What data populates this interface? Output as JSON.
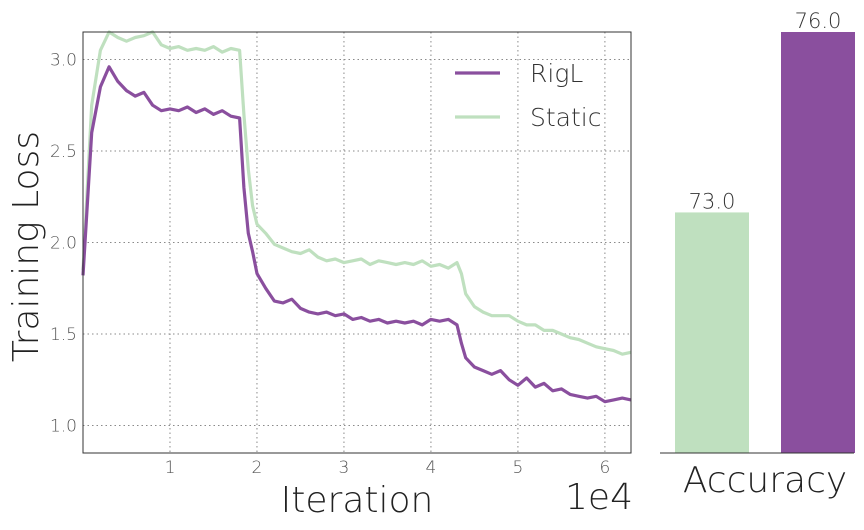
{
  "chart_data": [
    {
      "type": "line",
      "title": "",
      "xlabel": "Iteration",
      "x_offset_label": "1e4",
      "ylabel": "Training Loss",
      "xlim": [
        0,
        6.3
      ],
      "ylim": [
        0.85,
        3.15
      ],
      "xticks": [
        "1",
        "2",
        "3",
        "4",
        "5",
        "6"
      ],
      "yticks": [
        "1.0",
        "1.5",
        "2.0",
        "2.5",
        "3.0"
      ],
      "grid": true,
      "legend_position": "top-right",
      "series": [
        {
          "name": "RigL",
          "color": "#8a4f9e",
          "x": [
            0,
            0.1,
            0.2,
            0.3,
            0.4,
            0.5,
            0.6,
            0.7,
            0.8,
            0.9,
            1.0,
            1.1,
            1.2,
            1.3,
            1.4,
            1.5,
            1.6,
            1.7,
            1.8,
            1.85,
            1.9,
            1.95,
            2.0,
            2.1,
            2.2,
            2.3,
            2.4,
            2.5,
            2.6,
            2.7,
            2.8,
            2.9,
            3.0,
            3.1,
            3.2,
            3.3,
            3.4,
            3.5,
            3.6,
            3.7,
            3.8,
            3.9,
            4.0,
            4.1,
            4.2,
            4.3,
            4.35,
            4.4,
            4.5,
            4.6,
            4.7,
            4.8,
            4.9,
            5.0,
            5.1,
            5.2,
            5.3,
            5.4,
            5.5,
            5.6,
            5.7,
            5.8,
            5.9,
            6.0,
            6.1,
            6.2,
            6.3
          ],
          "y": [
            1.82,
            2.6,
            2.85,
            2.96,
            2.88,
            2.83,
            2.8,
            2.82,
            2.75,
            2.72,
            2.73,
            2.72,
            2.74,
            2.71,
            2.73,
            2.7,
            2.72,
            2.69,
            2.68,
            2.3,
            2.05,
            1.95,
            1.83,
            1.75,
            1.68,
            1.67,
            1.69,
            1.64,
            1.62,
            1.61,
            1.62,
            1.6,
            1.61,
            1.58,
            1.59,
            1.57,
            1.58,
            1.56,
            1.57,
            1.56,
            1.57,
            1.55,
            1.58,
            1.57,
            1.58,
            1.55,
            1.45,
            1.37,
            1.32,
            1.3,
            1.28,
            1.3,
            1.25,
            1.22,
            1.26,
            1.21,
            1.23,
            1.19,
            1.2,
            1.17,
            1.16,
            1.15,
            1.16,
            1.13,
            1.14,
            1.15,
            1.14
          ]
        },
        {
          "name": "Static",
          "color": "#bfe0bf",
          "x": [
            0,
            0.1,
            0.2,
            0.3,
            0.4,
            0.5,
            0.6,
            0.7,
            0.8,
            0.9,
            1.0,
            1.1,
            1.2,
            1.3,
            1.4,
            1.5,
            1.6,
            1.7,
            1.8,
            1.85,
            1.9,
            1.95,
            2.0,
            2.1,
            2.2,
            2.3,
            2.4,
            2.5,
            2.6,
            2.7,
            2.8,
            2.9,
            3.0,
            3.1,
            3.2,
            3.3,
            3.4,
            3.5,
            3.6,
            3.7,
            3.8,
            3.9,
            4.0,
            4.1,
            4.2,
            4.3,
            4.35,
            4.4,
            4.5,
            4.6,
            4.7,
            4.8,
            4.9,
            5.0,
            5.1,
            5.2,
            5.3,
            5.4,
            5.5,
            5.6,
            5.7,
            5.8,
            5.9,
            6.0,
            6.1,
            6.2,
            6.3
          ],
          "y": [
            1.85,
            2.75,
            3.05,
            3.15,
            3.12,
            3.1,
            3.12,
            3.13,
            3.15,
            3.08,
            3.06,
            3.07,
            3.05,
            3.06,
            3.05,
            3.07,
            3.04,
            3.06,
            3.05,
            2.7,
            2.4,
            2.2,
            2.1,
            2.05,
            1.99,
            1.97,
            1.95,
            1.94,
            1.96,
            1.92,
            1.9,
            1.91,
            1.89,
            1.9,
            1.91,
            1.88,
            1.9,
            1.89,
            1.88,
            1.89,
            1.88,
            1.9,
            1.87,
            1.88,
            1.86,
            1.89,
            1.83,
            1.72,
            1.65,
            1.62,
            1.6,
            1.6,
            1.6,
            1.57,
            1.55,
            1.55,
            1.52,
            1.52,
            1.5,
            1.48,
            1.47,
            1.45,
            1.43,
            1.42,
            1.41,
            1.39,
            1.4
          ]
        }
      ]
    },
    {
      "type": "bar",
      "title": "",
      "xlabel": "Accuracy",
      "categories": [
        "Static",
        "RigL"
      ],
      "values": [
        73.0,
        76.0
      ],
      "value_labels": [
        "73.0",
        "76.0"
      ],
      "colors": [
        "#bfe0bf",
        "#8a4f9e"
      ],
      "ylim": [
        69.0,
        76.0
      ]
    }
  ]
}
